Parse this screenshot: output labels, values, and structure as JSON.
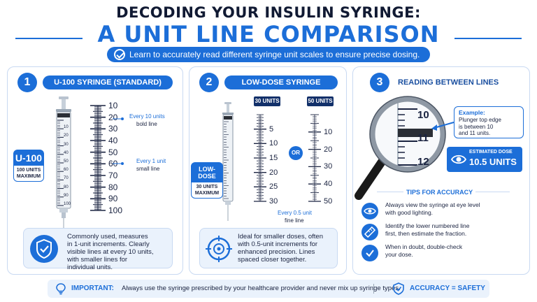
{
  "title": {
    "line1": "DECODING YOUR INSULIN SYRINGE:",
    "line2": "A UNIT LINE COMPARISON"
  },
  "subtitle": "Learn to accurately read different syringe unit scales to ensure precise dosing.",
  "panel1": {
    "number": "1",
    "heading": "U-100 SYRINGE (STANDARD)",
    "badge_big": "U-100",
    "badge_small_1": "100 UNITS",
    "badge_small_2": "MAXIMUM",
    "scale_labels": [
      "10",
      "20",
      "30",
      "40",
      "50",
      "60",
      "70",
      "80",
      "90",
      "100"
    ],
    "barrel_labels": [
      "10",
      "20",
      "30",
      "40",
      "50",
      "60",
      "70",
      "80",
      "90",
      "100"
    ],
    "note1_title": "Every 10 units",
    "note1_sub": "bold line",
    "note2_title": "Every 1 unit",
    "note2_sub": "small line",
    "desc": [
      "Commonly used, measures",
      "in 1-unit increments. Clearly",
      "visible lines at every 10 units,",
      "with smaller lines for",
      "individual units."
    ]
  },
  "panel2": {
    "number": "2",
    "heading": "LOW-DOSE SYRINGE",
    "badge_big": "LOW-DOSE",
    "badge_small_1": "30 UNITS",
    "badge_small_2": "MAXIMUM",
    "tag_a": "30 UNITS",
    "tag_b": "50 UNITS",
    "or": "OR",
    "scale_a": [
      "5",
      "10",
      "15",
      "20",
      "25",
      "30"
    ],
    "scale_b": [
      "10",
      "20",
      "30",
      "40",
      "50"
    ],
    "note_title": "Every 0.5 unit",
    "note_sub": "fine line",
    "desc": [
      "Ideal for smaller doses, often",
      "with 0.5-unit increments for",
      "enhanced precision. Lines",
      "spaced closer together."
    ]
  },
  "panel3": {
    "number": "3",
    "heading": "READING BETWEEN LINES",
    "lens_labels": [
      "10",
      "11",
      "12"
    ],
    "example_title": "Example:",
    "example_text": [
      "Plunger top edge",
      "is between 10",
      "and 11 units."
    ],
    "est_label": "ESTIMATED DOSE",
    "est_value": "10.5 UNITS",
    "tips_title": "TIPS FOR ACCURACY",
    "tips": [
      {
        "icon": "eye-icon",
        "lines": [
          "Always view the syringe at eye level",
          "with good lighting."
        ]
      },
      {
        "icon": "ruler-icon",
        "lines": [
          "Identify the lower numbered line",
          "first, then estimate the fraction."
        ]
      },
      {
        "icon": "check-icon",
        "lines": [
          "When in doubt, double-check",
          "your dose."
        ]
      }
    ]
  },
  "footer": {
    "important_label": "IMPORTANT:",
    "important_text": "Always use the syringe prescribed by your healthcare provider and never mix up syringe types.",
    "safety": "ACCURACY = SAFETY"
  },
  "colors": {
    "primary": "#1c6ed8",
    "dark": "#111a33",
    "light_bg": "#eaf2fc"
  }
}
